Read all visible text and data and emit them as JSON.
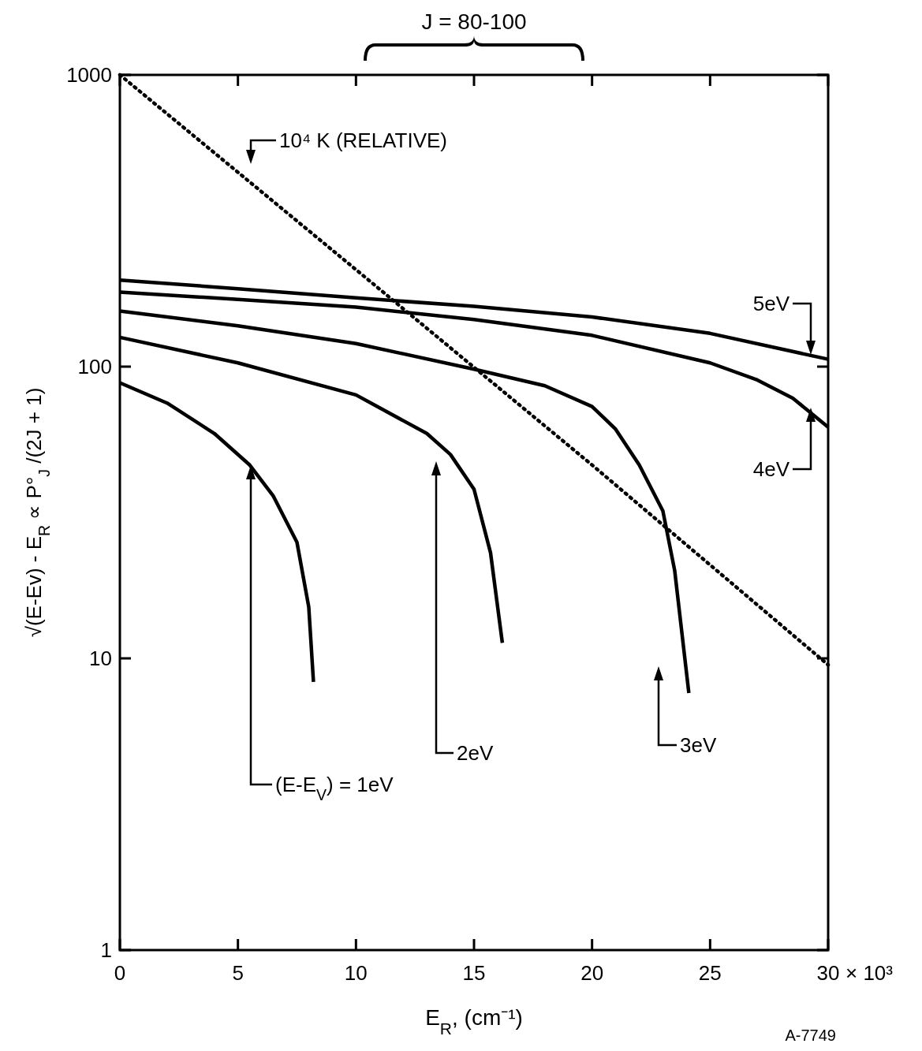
{
  "chart_data": {
    "type": "line",
    "xlabel": "E$_{R}$, (cm⁻¹)",
    "ylabel": "√(E-Ev) - E$_{R}$ ∝ P°$_{J}$ /(2J + 1)",
    "xlim": [
      0,
      30
    ],
    "ylim": [
      1,
      1000
    ],
    "log": "y",
    "xticks": [
      0,
      5,
      10,
      15,
      20,
      25,
      30
    ],
    "yticks": [
      1,
      10,
      100,
      1000
    ],
    "grid": false,
    "marker": "none",
    "series": [
      {
        "color": "#000000",
        "line_style": "dotted",
        "x": [
          0,
          10,
          20,
          30
        ],
        "values": [
          1000,
          215,
          46,
          9.5
        ]
      },
      {
        "color": "#000000",
        "x": [
          0,
          5,
          10,
          15,
          20,
          25,
          30
        ],
        "values": [
          198,
          185,
          172,
          161,
          148,
          130,
          106
        ]
      },
      {
        "color": "#000000",
        "x": [
          0,
          5,
          10,
          15,
          20,
          25,
          27,
          28.5,
          30
        ],
        "values": [
          180,
          170,
          160,
          145,
          128,
          103,
          90,
          78,
          62
        ]
      },
      {
        "color": "#000000",
        "x": [
          0,
          5,
          10,
          15,
          18,
          20,
          21,
          22,
          23,
          23.5,
          24.1
        ],
        "values": [
          155,
          138,
          120,
          98,
          86,
          73,
          61,
          46,
          32,
          20,
          7.6
        ]
      },
      {
        "color": "#000000",
        "x": [
          0,
          5,
          10,
          13,
          14,
          15,
          15.7,
          16.2
        ],
        "values": [
          126,
          103,
          80,
          59,
          50,
          38,
          23,
          11.3
        ]
      },
      {
        "color": "#000000",
        "x": [
          0,
          2,
          4,
          5.5,
          6.5,
          7.5,
          8,
          8.2
        ],
        "values": [
          88,
          75,
          59,
          46,
          36,
          25,
          15,
          8.3
        ]
      }
    ],
    "annotations": [
      "J = 80-100",
      "× 10³",
      "10⁴ K (RELATIVE)",
      "5eV",
      "4eV",
      "3eV",
      "2eV",
      "(E-E$_{V}$) = 1eV",
      "A-7749"
    ]
  }
}
